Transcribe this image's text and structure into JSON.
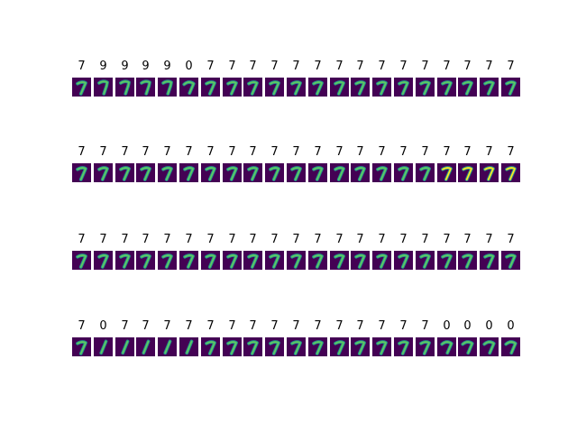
{
  "panels": [
    {
      "labels": [
        "7",
        "9",
        "9",
        "9",
        "9",
        "0",
        "7",
        "7",
        "7",
        "7",
        "7",
        "7",
        "7",
        "7",
        "7",
        "7",
        "7",
        "7",
        "7",
        "7",
        "7"
      ]
    },
    {
      "labels": [
        "7",
        "7",
        "7",
        "7",
        "7",
        "7",
        "7",
        "7",
        "7",
        "7",
        "7",
        "7",
        "7",
        "7",
        "7",
        "7",
        "7",
        "7",
        "7",
        "7",
        "7"
      ]
    },
    {
      "labels": [
        "7",
        "7",
        "7",
        "7",
        "7",
        "7",
        "7",
        "7",
        "7",
        "7",
        "7",
        "7",
        "7",
        "7",
        "7",
        "7",
        "7",
        "7",
        "7",
        "7",
        "7"
      ]
    },
    {
      "labels": [
        "7",
        "0",
        "7",
        "7",
        "7",
        "7",
        "7",
        "7",
        "7",
        "7",
        "7",
        "7",
        "7",
        "7",
        "7",
        "7",
        "7",
        "0",
        "0",
        "0",
        "0"
      ]
    }
  ],
  "colormap": {
    "background": "#440154",
    "stroke_mid": "#21918c",
    "stroke_high": "#5ec962",
    "stroke_peak": "#fde725"
  }
}
